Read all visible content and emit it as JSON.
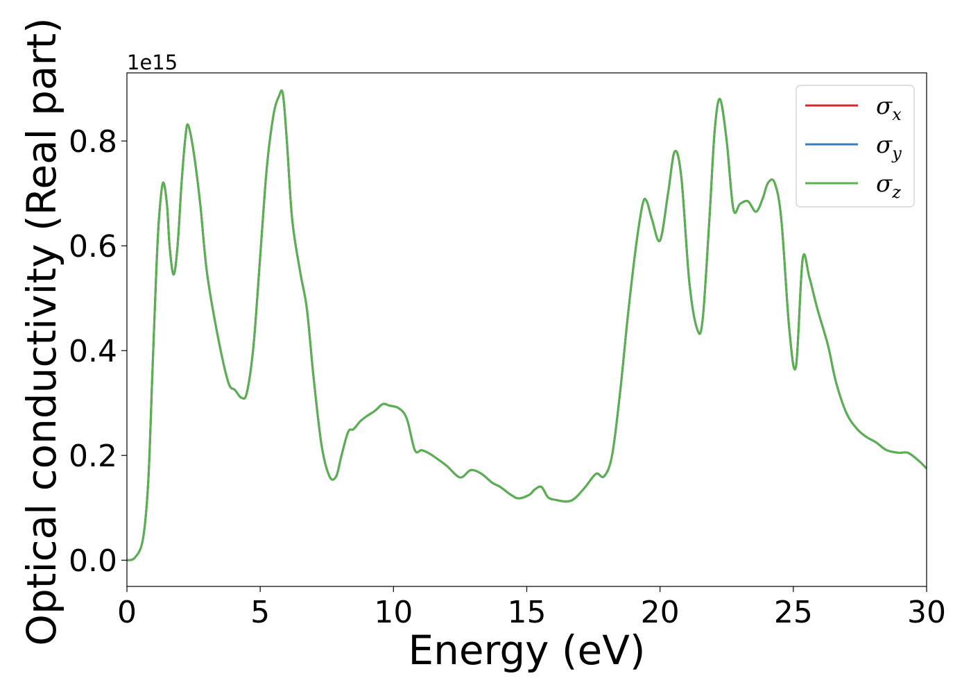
{
  "chart_data": {
    "type": "line",
    "xlabel": "Energy (eV)",
    "ylabel": "Optical conductivity (Real part)",
    "y_offset_label": "1e15",
    "xlim": [
      0,
      30
    ],
    "ylim": [
      -0.05,
      0.93
    ],
    "x_ticks": [
      0,
      5,
      10,
      15,
      20,
      25,
      30
    ],
    "y_ticks": [
      0.0,
      0.2,
      0.4,
      0.6,
      0.8
    ],
    "x_tick_labels": [
      "0",
      "5",
      "10",
      "15",
      "20",
      "25",
      "30"
    ],
    "y_tick_labels": [
      "0.0",
      "0.2",
      "0.4",
      "0.6",
      "0.8"
    ],
    "grid": false,
    "legend_position": "top-right",
    "series": [
      {
        "name": "σx",
        "base": "σ",
        "sub": "x",
        "color": "#d62728",
        "ref": "sigma_z"
      },
      {
        "name": "σy",
        "base": "σ",
        "sub": "y",
        "color": "#3a7dbf",
        "ref": "sigma_z"
      },
      {
        "name": "σz",
        "base": "σ",
        "sub": "z",
        "color": "#59b14f",
        "ref": "sigma_z"
      }
    ],
    "sigma_z": {
      "x": [
        0,
        0.3,
        0.6,
        0.8,
        0.95,
        1.1,
        1.2,
        1.35,
        1.5,
        1.6,
        1.75,
        1.9,
        2.05,
        2.2,
        2.3,
        2.5,
        2.75,
        3.0,
        3.4,
        3.8,
        4.05,
        4.3,
        4.5,
        4.75,
        5.0,
        5.25,
        5.5,
        5.7,
        5.85,
        6.0,
        6.2,
        6.5,
        6.75,
        7.0,
        7.3,
        7.6,
        7.85,
        8.05,
        8.3,
        8.5,
        8.75,
        9.0,
        9.3,
        9.6,
        9.85,
        10.2,
        10.5,
        10.8,
        11.05,
        11.3,
        11.6,
        12.0,
        12.5,
        12.9,
        13.3,
        13.7,
        14.0,
        14.4,
        14.7,
        15.1,
        15.3,
        15.55,
        15.8,
        16.1,
        16.5,
        16.8,
        17.2,
        17.6,
        17.9,
        18.2,
        18.5,
        18.8,
        19.1,
        19.35,
        19.5,
        19.7,
        20.0,
        20.3,
        20.55,
        20.8,
        21.1,
        21.4,
        21.6,
        21.85,
        22.05,
        22.25,
        22.5,
        22.75,
        23.0,
        23.3,
        23.6,
        23.85,
        24.05,
        24.3,
        24.55,
        24.85,
        25.1,
        25.35,
        25.6,
        25.9,
        26.3,
        26.6,
        27.0,
        27.4,
        27.75,
        28.1,
        28.5,
        28.95,
        29.3,
        29.7,
        30.0
      ],
      "y": [
        0.0,
        0.005,
        0.04,
        0.15,
        0.35,
        0.55,
        0.65,
        0.72,
        0.68,
        0.6,
        0.545,
        0.6,
        0.72,
        0.81,
        0.83,
        0.78,
        0.68,
        0.55,
        0.43,
        0.34,
        0.325,
        0.31,
        0.32,
        0.41,
        0.58,
        0.75,
        0.85,
        0.885,
        0.89,
        0.8,
        0.65,
        0.55,
        0.48,
        0.35,
        0.22,
        0.16,
        0.16,
        0.2,
        0.245,
        0.25,
        0.265,
        0.275,
        0.285,
        0.298,
        0.295,
        0.29,
        0.27,
        0.21,
        0.21,
        0.205,
        0.195,
        0.18,
        0.158,
        0.172,
        0.165,
        0.148,
        0.14,
        0.125,
        0.118,
        0.125,
        0.135,
        0.14,
        0.12,
        0.115,
        0.112,
        0.118,
        0.14,
        0.165,
        0.16,
        0.2,
        0.32,
        0.47,
        0.6,
        0.68,
        0.685,
        0.65,
        0.61,
        0.7,
        0.78,
        0.73,
        0.53,
        0.44,
        0.46,
        0.65,
        0.82,
        0.88,
        0.8,
        0.67,
        0.68,
        0.685,
        0.665,
        0.69,
        0.72,
        0.72,
        0.65,
        0.44,
        0.37,
        0.575,
        0.54,
        0.48,
        0.41,
        0.34,
        0.28,
        0.25,
        0.235,
        0.225,
        0.21,
        0.205,
        0.205,
        0.19,
        0.175
      ]
    }
  }
}
